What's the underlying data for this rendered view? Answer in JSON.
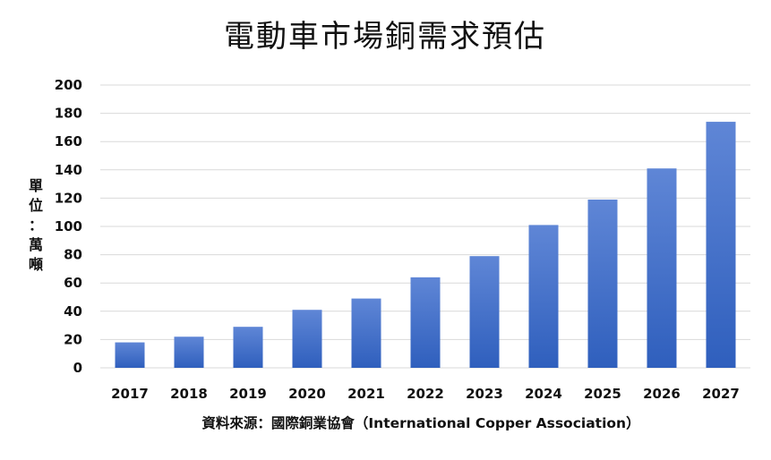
{
  "chart_data": {
    "type": "bar",
    "title": "電動車市場銅需求預估",
    "ylabel": "單位：萬噸",
    "source": "資料來源：國際銅業協會（International Copper Association）",
    "categories": [
      "2017",
      "2018",
      "2019",
      "2020",
      "2021",
      "2022",
      "2023",
      "2024",
      "2025",
      "2026",
      "2027"
    ],
    "values": [
      18,
      22,
      29,
      41,
      49,
      64,
      79,
      101,
      119,
      141,
      174
    ],
    "ylim": [
      0,
      200
    ],
    "yticks": [
      0,
      20,
      40,
      60,
      80,
      100,
      120,
      140,
      160,
      180,
      200
    ],
    "grid": true,
    "legend": "none",
    "colors": {
      "bar_top": "#5f86d6",
      "bar_bottom": "#2f5fbd",
      "grid": "#d9d9d9"
    }
  }
}
